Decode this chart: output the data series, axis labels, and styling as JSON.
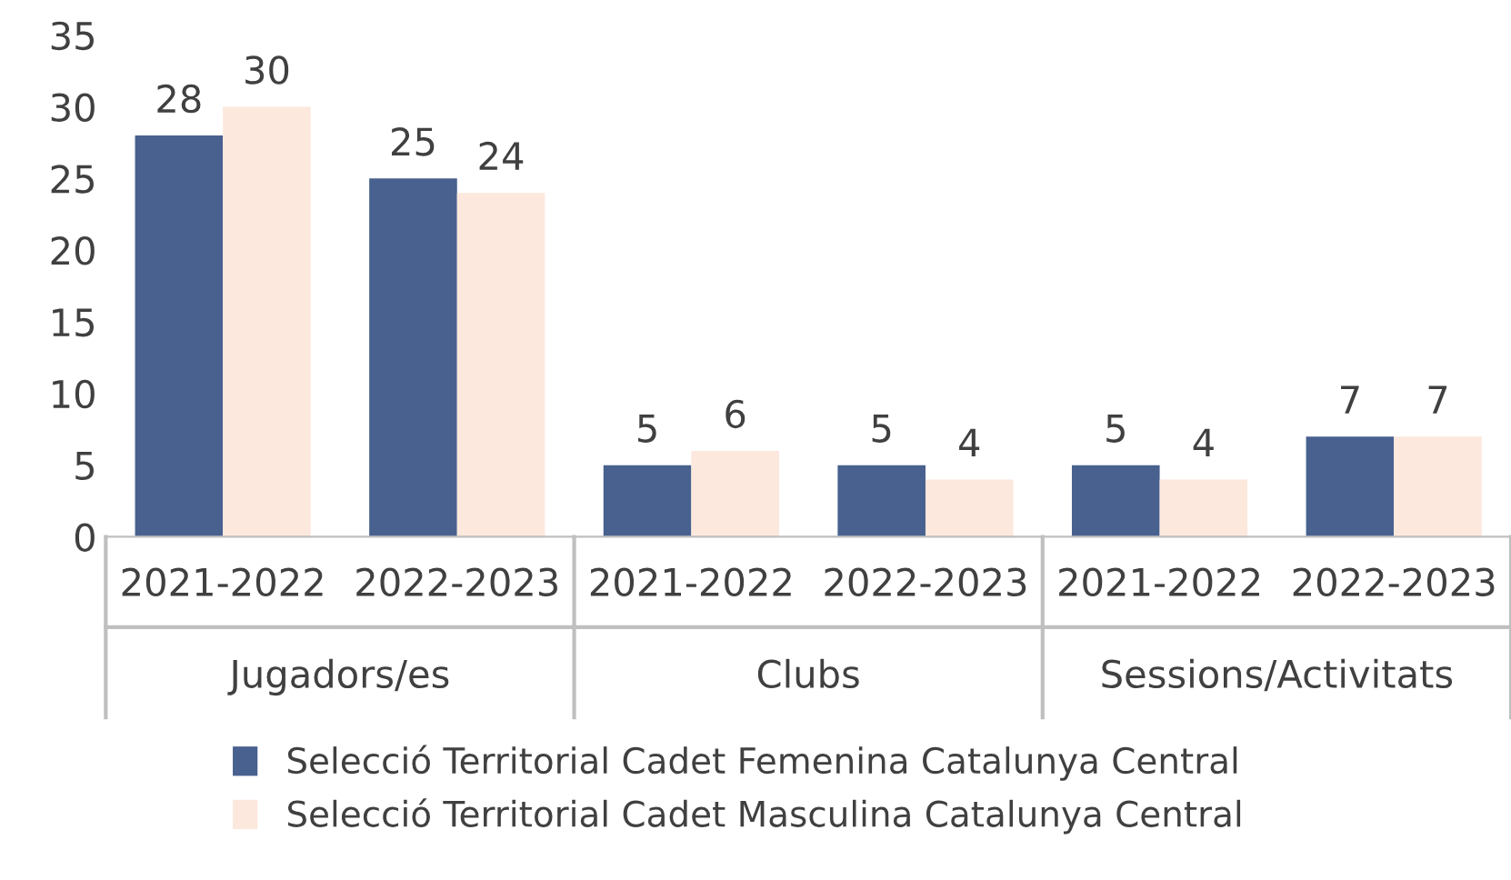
{
  "chart_data": {
    "type": "bar",
    "categories": [
      "2021-2022",
      "2022-2023",
      "2021-2022",
      "2022-2023",
      "2021-2022",
      "2022-2023"
    ],
    "series": [
      {
        "name": "Selecció Territorial Cadet Femenina Catalunya Central",
        "color": "#48618e",
        "values": [
          28,
          25,
          5,
          5,
          5,
          7
        ]
      },
      {
        "name": "Selecció Territorial Cadet Masculina Catalunya Central",
        "color": "#fce8dd",
        "values": [
          30,
          24,
          6,
          4,
          4,
          7
        ]
      }
    ],
    "annotations": [
      "Jugadors/es",
      "Clubs",
      "Sessions/Activitats"
    ],
    "ylim": [
      0,
      35
    ],
    "yticks": [
      0,
      5,
      10,
      15,
      20,
      25,
      30,
      35
    ],
    "data_labels": true,
    "grid": false,
    "legend": "bottom"
  }
}
